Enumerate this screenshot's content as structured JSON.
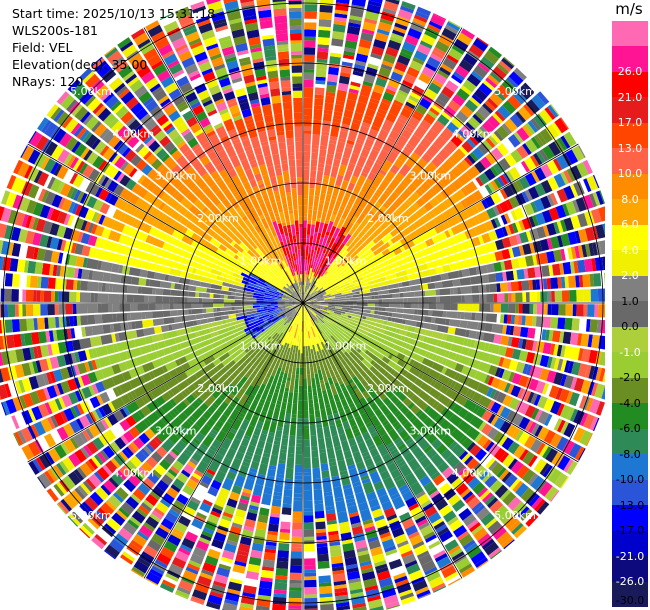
{
  "header": {
    "start_time": "Start time: 2025/10/13 15:31:18",
    "station": "WLS200s-181",
    "field": "Field: VEL",
    "elevation": "Elevation(deg): 35.00",
    "nrays": "NRays: 120"
  },
  "colorbar": {
    "unit": "m/s",
    "levels": [
      "-30.0",
      "-26.0",
      "-21.0",
      "-17.0",
      "-13.0",
      "-10.0",
      "-8.0",
      "-6.0",
      "-4.0",
      "-2.0",
      "-1.0",
      "0.0",
      "1.0",
      "2.0",
      "4.0",
      "6.0",
      "8.0",
      "10.0",
      "13.0",
      "17.0",
      "21.0",
      "26.0"
    ],
    "colors": [
      "#191a5a",
      "#0d0a7e",
      "#0000cc",
      "#0000ff",
      "#2a55d8",
      "#1f77d4",
      "#2e8b57",
      "#228b22",
      "#6b8e23",
      "#9acd32",
      "#adcf3c",
      "#696969",
      "#808080",
      "#f0f000",
      "#ffff00",
      "#ffa500",
      "#ff8c00",
      "#ff6347",
      "#ff4500",
      "#e61c1c",
      "#ff0000",
      "#ff1493",
      "#ff69b4"
    ]
  },
  "chart_data": {
    "type": "ppi",
    "title": "",
    "field": "VEL",
    "units": "m/s",
    "elevation_deg": 35.0,
    "n_rays": 120,
    "range_rings_km": [
      1.0,
      2.0,
      3.0,
      4.0,
      5.0
    ],
    "ring_labels": [
      "1.00km",
      "2.00km",
      "3.00km",
      "4.00km",
      "5.00km"
    ],
    "radial_lines_deg": [
      0,
      30,
      60,
      90,
      120,
      150,
      180,
      210,
      240,
      270,
      300,
      330
    ],
    "grid": true,
    "max_range_km": 5.3,
    "velocity_regions": [
      {
        "region": "center-west",
        "range_km": [
          0.3,
          1.0
        ],
        "azimuth_deg": [
          240,
          300
        ],
        "value_ms": -17
      },
      {
        "region": "north-inner",
        "range_km": [
          0.5,
          1.5
        ],
        "azimuth_deg": [
          330,
          30
        ],
        "value_ms": 17
      },
      {
        "region": "north",
        "range_km": [
          1.5,
          2.6
        ],
        "azimuth_deg": [
          300,
          60
        ],
        "value_ms": 8
      },
      {
        "region": "north-outer",
        "range_km": [
          2.6,
          3.5
        ],
        "azimuth_deg": [
          290,
          70
        ],
        "value_ms": 4
      },
      {
        "region": "south-inner",
        "range_km": [
          0.2,
          0.7
        ],
        "azimuth_deg": [
          120,
          240
        ],
        "value_ms": 2
      },
      {
        "region": "south",
        "range_km": [
          1.0,
          3.0
        ],
        "azimuth_deg": [
          100,
          260
        ],
        "value_ms": -4
      },
      {
        "region": "south-far",
        "range_km": [
          2.0,
          3.3
        ],
        "azimuth_deg": [
          150,
          210
        ],
        "value_ms": -8
      },
      {
        "region": "outer-noise",
        "range_km": [
          3.5,
          5.3
        ],
        "azimuth_deg": [
          0,
          360
        ],
        "value_ms": null
      }
    ]
  }
}
